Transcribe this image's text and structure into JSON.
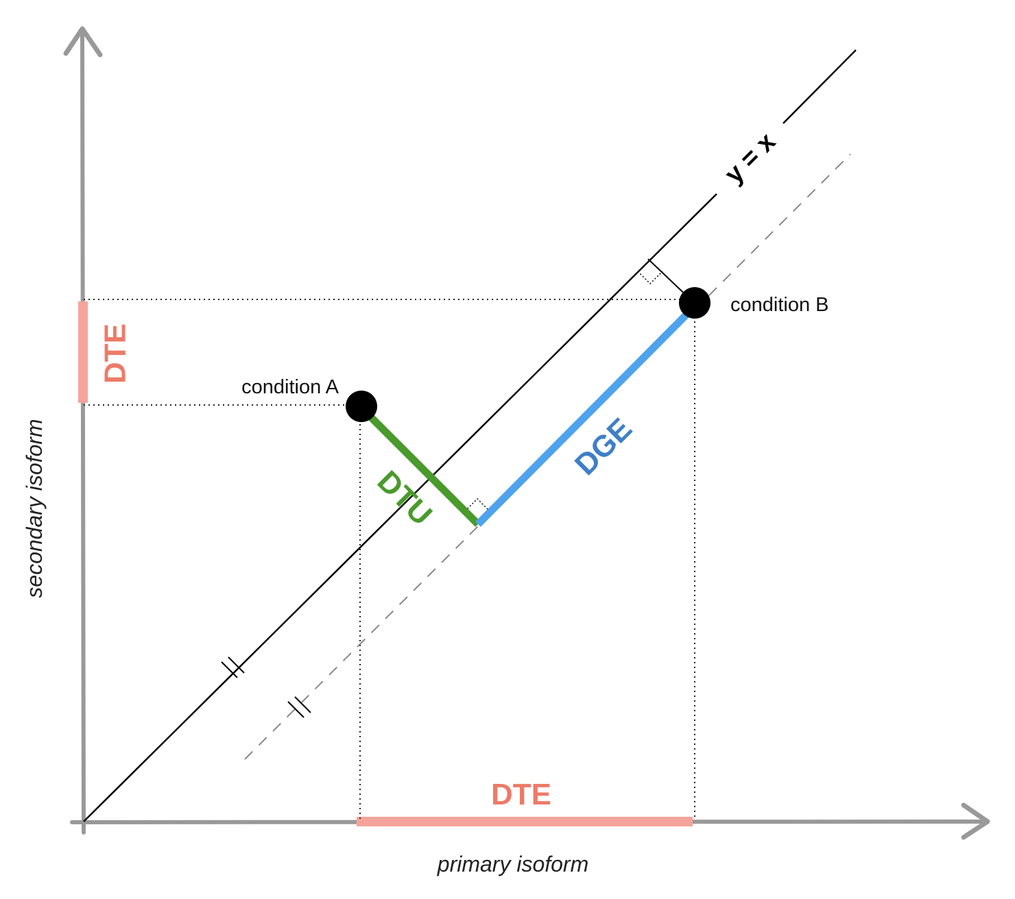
{
  "axes": {
    "x_label": "primary isoform",
    "y_label": "secondary isoform"
  },
  "identity_line": {
    "label": "y = x"
  },
  "points": {
    "a": {
      "label": "condition A"
    },
    "b": {
      "label": "condition B"
    }
  },
  "segments": {
    "dtu": {
      "label": "DTU",
      "color": "#4a9a2c"
    },
    "dge": {
      "label": "DGE",
      "color": "#4fa3ec"
    },
    "dte": {
      "label": "DTE",
      "color": "#f4a49b",
      "text_color": "#ec7b68"
    }
  },
  "colors": {
    "axis": "#999999",
    "line": "#000000",
    "guide": "#222222",
    "dashed": "#888888",
    "dge_text": "#3e7fc7"
  }
}
